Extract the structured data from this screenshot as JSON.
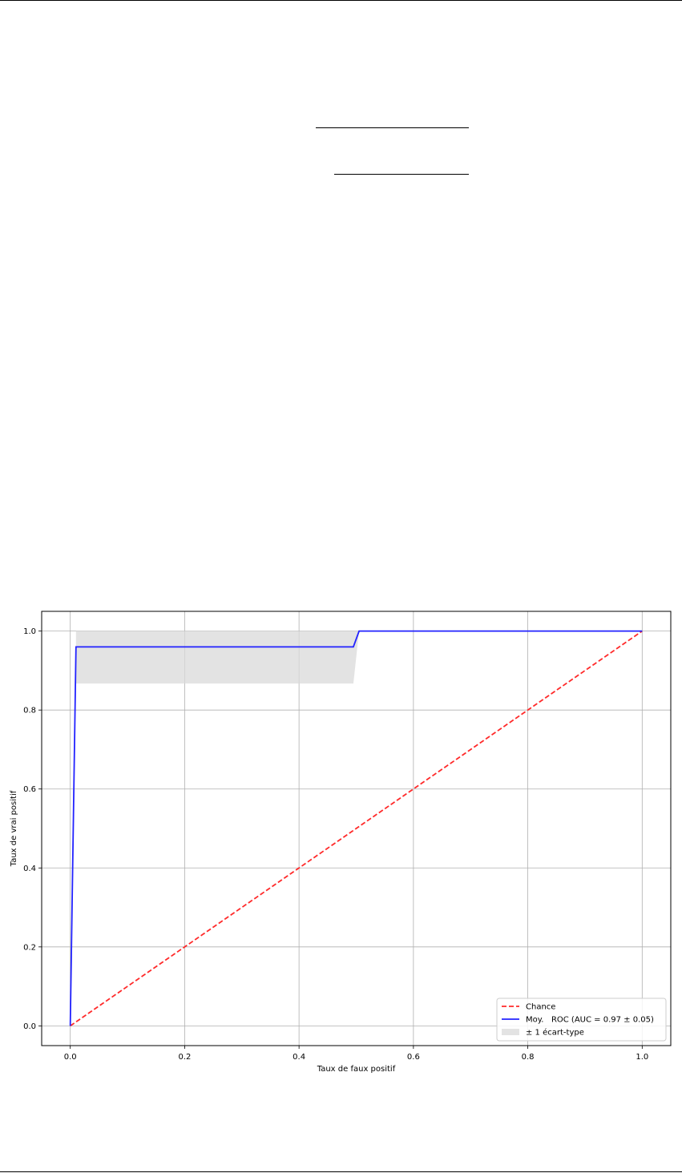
{
  "chart_data": {
    "type": "line",
    "title": "",
    "xlabel": "Taux de faux positif",
    "ylabel": "Taux de vrai positif",
    "xlim": [
      -0.05,
      1.05
    ],
    "ylim": [
      -0.05,
      1.05
    ],
    "x_ticks": [
      "0.0",
      "0.2",
      "0.4",
      "0.6",
      "0.8",
      "1.0"
    ],
    "y_ticks": [
      "0.0",
      "0.2",
      "0.4",
      "0.6",
      "0.8",
      "1.0"
    ],
    "grid": true,
    "legend_position": "lower-right",
    "series": [
      {
        "name": "Chance",
        "style": "dashed",
        "color": "#ff2a2a",
        "x": [
          0,
          1
        ],
        "y": [
          0,
          1
        ]
      },
      {
        "name": "Moy.   ROC (AUC = 0.97 ± 0.05)",
        "style": "solid",
        "color": "#2222ff",
        "x": [
          0,
          0.01,
          0.495,
          0.505,
          1
        ],
        "y": [
          0,
          0.96,
          0.96,
          1,
          1
        ]
      },
      {
        "name": "± 1 écart-type",
        "style": "band",
        "color": "#d9d9d9",
        "x": [
          0.01,
          0.495,
          0.505,
          1
        ],
        "y_lower": [
          0.867,
          0.867,
          1,
          1
        ],
        "y_upper": [
          1,
          1,
          1,
          1
        ]
      }
    ]
  }
}
